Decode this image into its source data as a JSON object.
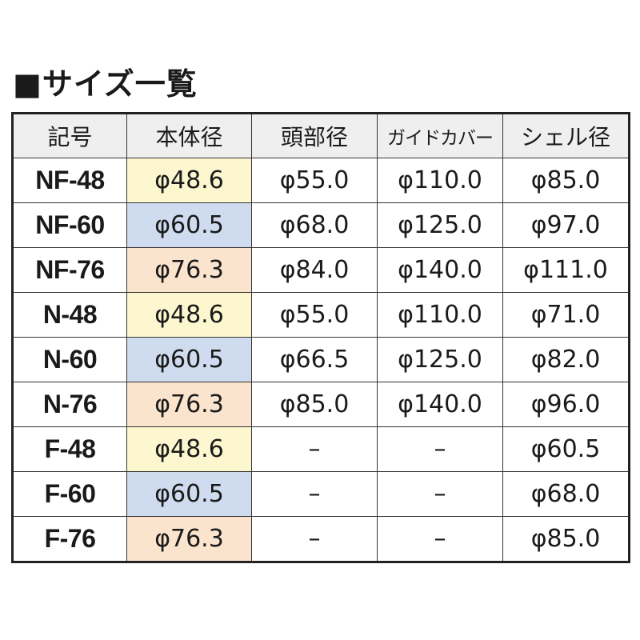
{
  "title": "■サイズ一覧",
  "table": {
    "header": [
      "記号",
      "本体径",
      "頭部径",
      "ガイドカバー",
      "シェル径"
    ],
    "rows": [
      [
        "NF-48",
        "φ48.6",
        "φ55.0",
        "φ110.0",
        "φ85.0"
      ],
      [
        "NF-60",
        "φ60.5",
        "φ68.0",
        "φ125.0",
        "φ97.0"
      ],
      [
        "NF-76",
        "φ76.3",
        "φ84.0",
        "φ140.0",
        "φ111.0"
      ],
      [
        "N-48",
        "φ48.6",
        "φ55.0",
        "φ110.0",
        "φ71.0"
      ],
      [
        "N-60",
        "φ60.5",
        "φ66.5",
        "φ125.0",
        "φ82.0"
      ],
      [
        "N-76",
        "φ76.3",
        "φ85.0",
        "φ140.0",
        "φ96.0"
      ],
      [
        "F-48",
        "φ48.6",
        "–",
        "–",
        "φ60.5"
      ],
      [
        "F-60",
        "φ60.5",
        "–",
        "–",
        "φ68.0"
      ],
      [
        "F-76",
        "φ76.3",
        "–",
        "–",
        "φ85.0"
      ]
    ]
  }
}
